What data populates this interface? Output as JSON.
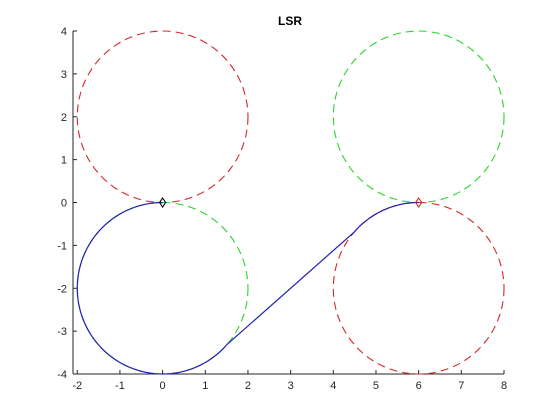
{
  "chart_data": {
    "type": "line",
    "title": "LSR",
    "xlabel": "",
    "ylabel": "",
    "xlim": [
      -2.1,
      8
    ],
    "ylim": [
      -4,
      4
    ],
    "x_ticks": [
      -2,
      -1,
      0,
      1,
      2,
      3,
      4,
      5,
      6,
      7,
      8
    ],
    "y_ticks": [
      -4,
      -3,
      -2,
      -1,
      0,
      1,
      2,
      3,
      4
    ],
    "grid": false,
    "circles": [
      {
        "center": [
          0,
          2
        ],
        "radius": 2,
        "color": "#d62728",
        "style": "dashed"
      },
      {
        "center": [
          0,
          -2
        ],
        "radius": 2,
        "color": "#2ad42a",
        "style": "dashed"
      },
      {
        "center": [
          6,
          2
        ],
        "radius": 2,
        "color": "#2ad42a",
        "style": "dashed"
      },
      {
        "center": [
          6,
          -2
        ],
        "radius": 2,
        "color": "#d62728",
        "style": "dashed"
      }
    ],
    "path": {
      "color": "#1f1fb4",
      "segments": [
        {
          "type": "arc",
          "center": [
            0,
            -2
          ],
          "radius": 2,
          "from": [
            0,
            0
          ],
          "to": [
            1.5,
            -3.32
          ],
          "direction": "counterclockwise"
        },
        {
          "type": "line",
          "from": [
            1.5,
            -3.32
          ],
          "to": [
            4.5,
            -0.68
          ]
        },
        {
          "type": "arc",
          "center": [
            6,
            -2
          ],
          "radius": 2,
          "from": [
            4.5,
            -0.68
          ],
          "to": [
            6,
            0
          ],
          "direction": "clockwise"
        }
      ]
    },
    "markers": [
      {
        "x": 0,
        "y": 0,
        "shape": "diamond",
        "color": "#000000"
      },
      {
        "x": 6,
        "y": 0,
        "shape": "diamond",
        "color": "#d62728"
      }
    ]
  }
}
